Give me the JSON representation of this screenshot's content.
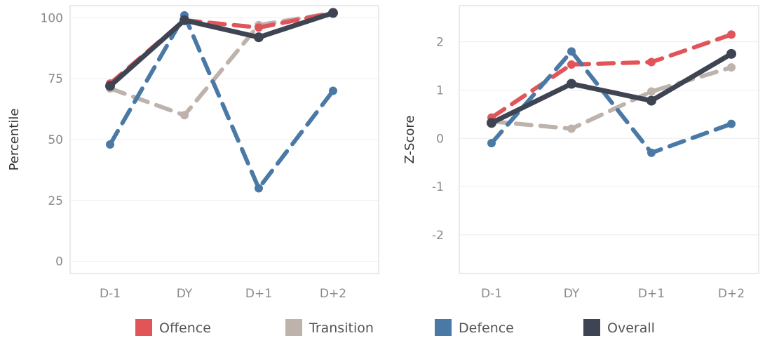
{
  "chart_data": [
    {
      "type": "line",
      "ylabel": "Percentile",
      "categories": [
        "D-1",
        "DY",
        "D+1",
        "D+2"
      ],
      "ylim": [
        -5,
        105
      ],
      "yticks": [
        0,
        25,
        50,
        75,
        100
      ],
      "grid": true,
      "series": [
        {
          "name": "Transition",
          "values": [
            71,
            60,
            97,
            102
          ]
        },
        {
          "name": "Offence",
          "values": [
            73,
            99,
            96,
            102
          ]
        },
        {
          "name": "Defence",
          "values": [
            48,
            101,
            30,
            70
          ]
        },
        {
          "name": "Overall",
          "values": [
            72,
            99,
            92,
            102
          ]
        }
      ]
    },
    {
      "type": "line",
      "ylabel": "Z-Score",
      "categories": [
        "D-1",
        "DY",
        "D+1",
        "D+2"
      ],
      "ylim": [
        -2.8,
        2.75
      ],
      "yticks": [
        2,
        1,
        0,
        -1,
        -2
      ],
      "grid": true,
      "series": [
        {
          "name": "Transition",
          "values": [
            0.35,
            0.2,
            0.97,
            1.47
          ]
        },
        {
          "name": "Offence",
          "values": [
            0.43,
            1.53,
            1.58,
            2.15
          ]
        },
        {
          "name": "Defence",
          "values": [
            -0.1,
            1.8,
            -0.3,
            0.3
          ]
        },
        {
          "name": "Overall",
          "values": [
            0.32,
            1.13,
            0.78,
            1.75
          ]
        }
      ]
    }
  ],
  "legend": {
    "placement": "bottom",
    "items": [
      {
        "name": "Offence",
        "color": "#e0545a",
        "dash": true
      },
      {
        "name": "Transition",
        "color": "#bdb3ac",
        "dash": true
      },
      {
        "name": "Defence",
        "color": "#4a79a6",
        "dash": true
      },
      {
        "name": "Overall",
        "color": "#3e4451",
        "dash": false
      }
    ]
  },
  "colors": {
    "grid": "#ececec",
    "frame": "#d6d6d6",
    "tick_text": "#8a8a8a",
    "axis_title": "#333333"
  }
}
